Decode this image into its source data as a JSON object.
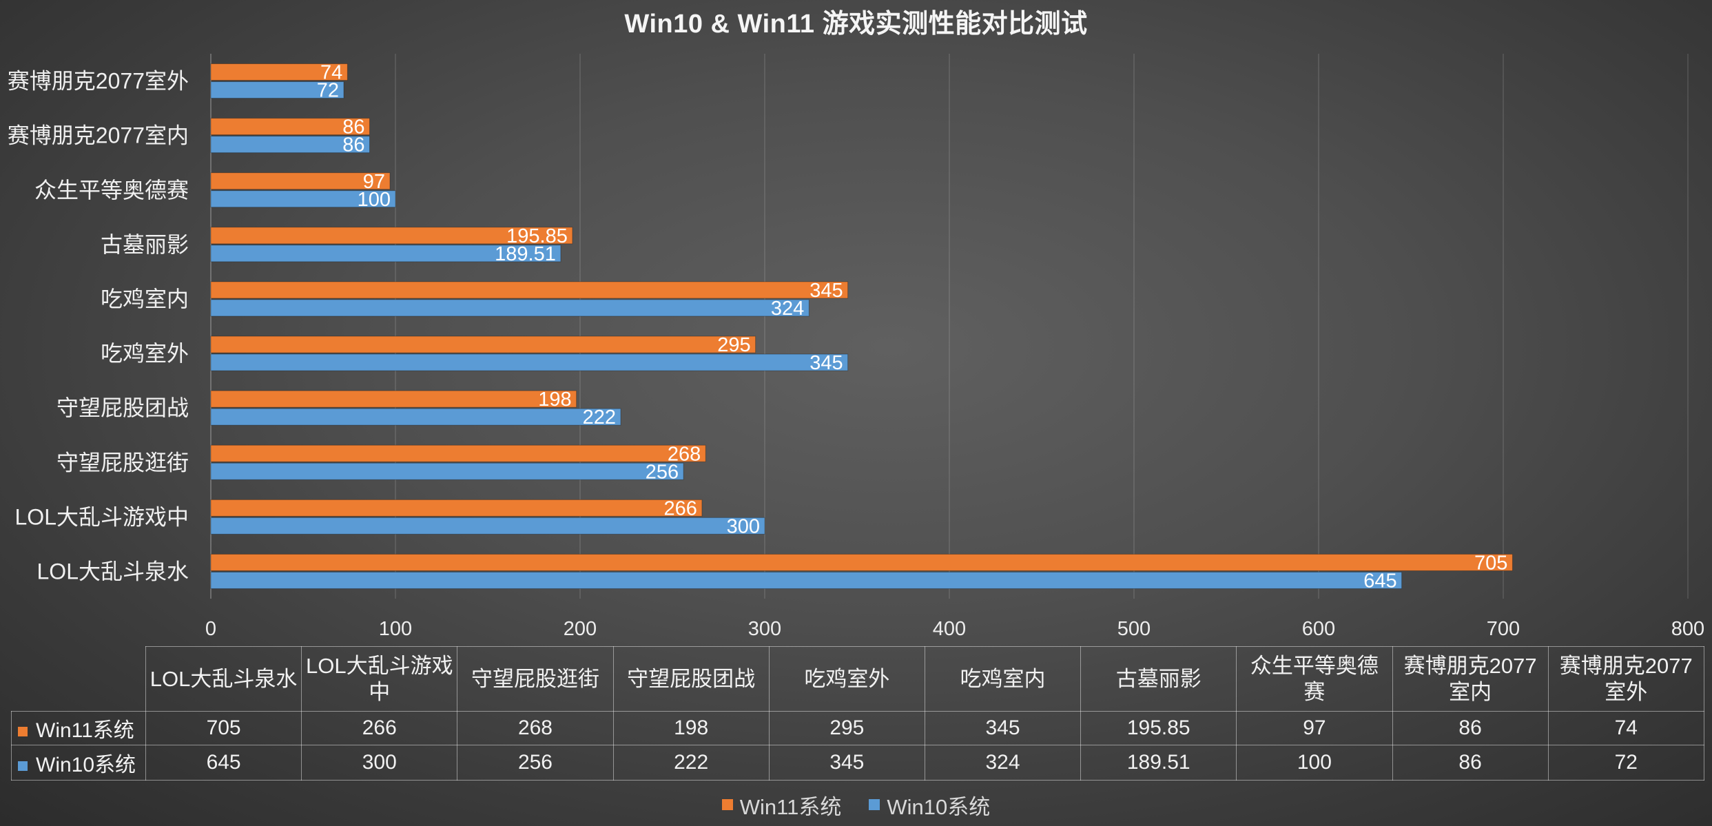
{
  "chart_data": {
    "type": "bar",
    "orientation": "horizontal",
    "title": "Win10 & Win11 游戏实测性能对比测试",
    "categories": [
      "LOL大乱斗泉水",
      "LOL大乱斗游戏中",
      "守望屁股逛街",
      "守望屁股团战",
      "吃鸡室外",
      "吃鸡室内",
      "古墓丽影",
      "众生平等奥德赛",
      "赛博朋克2077室内",
      "赛博朋克2077室外"
    ],
    "series": [
      {
        "name": "Win11系统",
        "color": "#ED7D31",
        "values": [
          705,
          266,
          268,
          198,
          295,
          345,
          195.85,
          97,
          86,
          74
        ]
      },
      {
        "name": "Win10系统",
        "color": "#5B9BD5",
        "values": [
          645,
          300,
          256,
          222,
          345,
          324,
          189.51,
          100,
          86,
          72
        ]
      }
    ],
    "xlim": [
      0,
      800
    ],
    "xticks": [
      0,
      100,
      200,
      300,
      400,
      500,
      600,
      700,
      800
    ],
    "grid": true,
    "legend": "bottom",
    "data_labels": true
  },
  "data_table": {
    "column_headers": [
      "LOL大乱斗泉水",
      "LOL大乱斗游戏\n中",
      "守望屁股逛街",
      "守望屁股团战",
      "吃鸡室外",
      "吃鸡室内",
      "古墓丽影",
      "众生平等奥德\n赛",
      "赛博朋克2077\n室内",
      "赛博朋克2077\n室外"
    ]
  }
}
